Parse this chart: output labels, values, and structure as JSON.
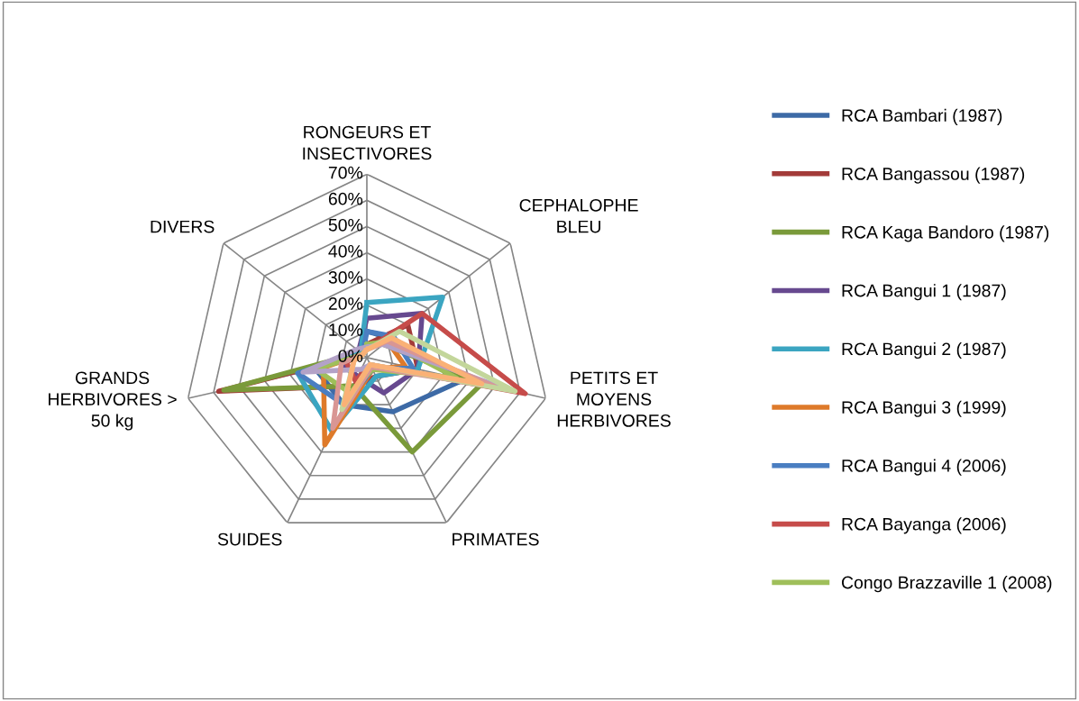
{
  "chart_data": {
    "type": "radar",
    "categories": [
      "RONGEURS ET\nINSECTIVORES",
      "CEPHALOPHE\nBLEU",
      "PETITS ET\nMOYENS\nHERBIVORES",
      "PRIMATES",
      "SUIDES",
      "GRANDS\nHERBIVORES >\n50 kg",
      "DIVERS"
    ],
    "ylim": [
      0,
      70
    ],
    "yticks": [
      {
        "value": 0,
        "label": "0%"
      },
      {
        "value": 10,
        "label": "10%"
      },
      {
        "value": 20,
        "label": "20%"
      },
      {
        "value": 30,
        "label": "30%"
      },
      {
        "value": 40,
        "label": "40%"
      },
      {
        "value": 50,
        "label": "50%"
      },
      {
        "value": 60,
        "label": "60%"
      },
      {
        "value": 70,
        "label": "70%"
      }
    ],
    "grid": true,
    "legend": "right",
    "marker": "none",
    "line_style": "solid",
    "series": [
      {
        "name": "RCA Bambari (1987)",
        "color": "#3d6aa6",
        "values": [
          10,
          12,
          38,
          23,
          20,
          20,
          3
        ]
      },
      {
        "name": "RCA Bangassou (1987)",
        "color": "#a33b39",
        "values": [
          5,
          20,
          20,
          8,
          12,
          58,
          2
        ]
      },
      {
        "name": "RCA Kaga Bandoro (1987)",
        "color": "#7a9a3a",
        "values": [
          5,
          8,
          45,
          40,
          12,
          56,
          3
        ]
      },
      {
        "name": "RCA Bangui 1 (1987)",
        "color": "#67498f",
        "values": [
          15,
          27,
          20,
          15,
          8,
          10,
          4
        ]
      },
      {
        "name": "RCA Bangui 2 (1987)",
        "color": "#3ba5c1",
        "values": [
          21,
          37,
          20,
          8,
          31,
          27,
          3
        ]
      },
      {
        "name": "RCA Bangui 3 (1999)",
        "color": "#de7a2a",
        "values": [
          5,
          10,
          15,
          5,
          37,
          17,
          2
        ]
      },
      {
        "name": "RCA Bangui 4 (2006)",
        "color": "#4a7ec1",
        "values": [
          10,
          13,
          18,
          5,
          20,
          27,
          2
        ]
      },
      {
        "name": "RCA Bayanga (2006)",
        "color": "#c64c4a",
        "values": [
          3,
          27,
          62,
          3,
          10,
          8,
          2
        ]
      },
      {
        "name": "Congo Brazzaville 1 (2008)",
        "color": "#9fbf5a",
        "values": [
          5,
          10,
          35,
          5,
          15,
          20,
          2
        ]
      },
      {
        "color": "#b3a2c7",
        "values": [
          4,
          8,
          55,
          3,
          5,
          25,
          5
        ]
      },
      {
        "color": "#d99694",
        "values": [
          3,
          10,
          50,
          4,
          30,
          10,
          2
        ]
      },
      {
        "color": "#c3d69b",
        "values": [
          3,
          16,
          58,
          3,
          22,
          5,
          2
        ]
      },
      {
        "color": "#fab176",
        "values": [
          3,
          12,
          45,
          3,
          20,
          5,
          2
        ]
      }
    ]
  }
}
